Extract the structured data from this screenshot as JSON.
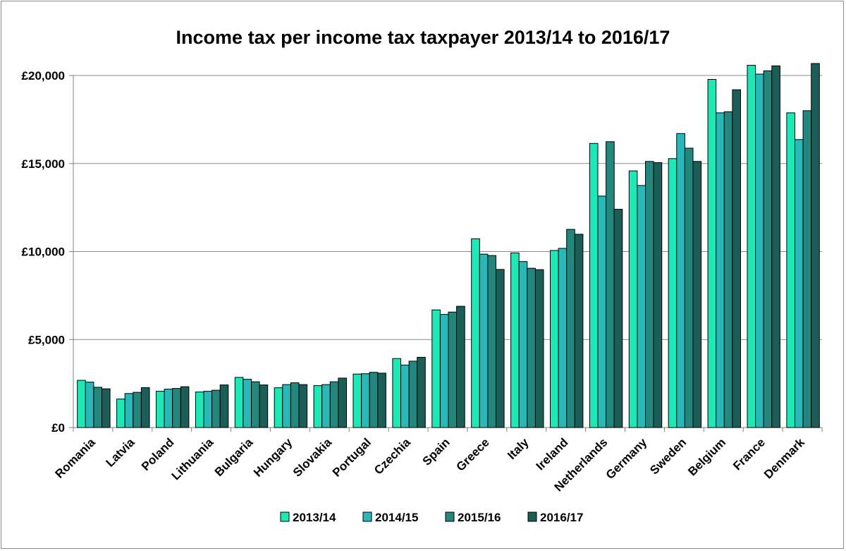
{
  "chart_data": {
    "type": "bar",
    "title": "Income tax per income tax taxpayer 2013/14 to 2016/17",
    "xlabel": "",
    "ylabel": "",
    "ylim": [
      0,
      20000
    ],
    "yticks": [
      0,
      5000,
      10000,
      15000,
      20000
    ],
    "ytick_labels": [
      "£0",
      "£5,000",
      "£10,000",
      "£15,000",
      "£20,000"
    ],
    "grid": true,
    "legend_position": "bottom",
    "categories": [
      "Romania",
      "Latvia",
      "Poland",
      "Lithuania",
      "Bulgaria",
      "Hungary",
      "Slovakia",
      "Portugal",
      "Czechia",
      "Spain",
      "Greece",
      "Italy",
      "Ireland",
      "Netherlands",
      "Germany",
      "Sweden",
      "Belgium",
      "France",
      "Denmark"
    ],
    "series": [
      {
        "name": "2013/14",
        "color": "#1de9b6",
        "values": [
          2680,
          1620,
          2060,
          2020,
          2850,
          2260,
          2380,
          3040,
          3920,
          6680,
          10720,
          9920,
          10060,
          16140,
          14580,
          15280,
          19780,
          20580,
          17880
        ]
      },
      {
        "name": "2014/15",
        "color": "#28b8b8",
        "values": [
          2580,
          1930,
          2180,
          2060,
          2740,
          2440,
          2440,
          3060,
          3550,
          6430,
          9850,
          9430,
          10180,
          13150,
          13750,
          16700,
          17880,
          20080,
          16360
        ]
      },
      {
        "name": "2015/16",
        "color": "#23877d",
        "values": [
          2290,
          2000,
          2220,
          2120,
          2600,
          2540,
          2600,
          3140,
          3770,
          6560,
          9770,
          9050,
          11260,
          16240,
          15120,
          15870,
          17940,
          20270,
          18000
        ]
      },
      {
        "name": "2016/17",
        "color": "#1b5e58",
        "values": [
          2200,
          2270,
          2320,
          2420,
          2420,
          2440,
          2810,
          3090,
          3990,
          6890,
          8980,
          8970,
          10980,
          12400,
          15050,
          15120,
          19190,
          20550,
          20680
        ]
      }
    ]
  }
}
